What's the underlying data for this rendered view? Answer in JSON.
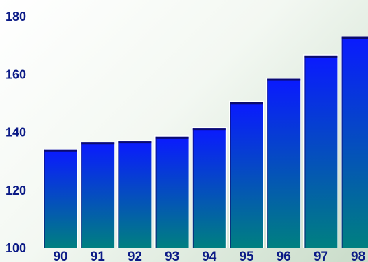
{
  "chart_data": {
    "type": "bar",
    "categories": [
      "90",
      "91",
      "92",
      "93",
      "94",
      "95",
      "96",
      "97",
      "98"
    ],
    "values": [
      134,
      136.5,
      137,
      138.5,
      141.5,
      150.5,
      158.5,
      166.5,
      173
    ],
    "y_ticks": [
      "100",
      "120",
      "140",
      "160",
      "180"
    ],
    "ylim": [
      100,
      180
    ],
    "title": "",
    "xlabel": "",
    "ylabel": "",
    "grid": false,
    "legend": "none",
    "colors": {
      "bar_top": "#0a1aff",
      "bar_bottom": "#008080",
      "bar_cap": "#0b0b6e",
      "text": "#0b1a86"
    }
  }
}
